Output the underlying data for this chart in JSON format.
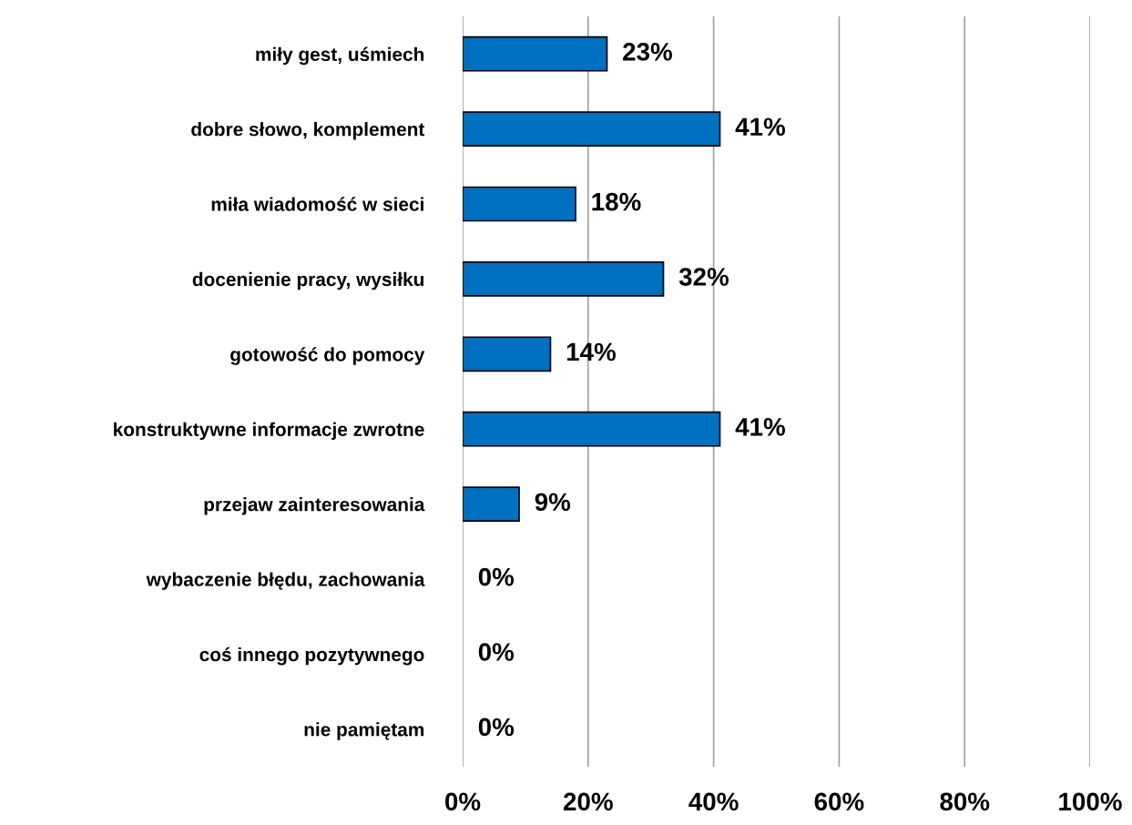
{
  "chart_data": {
    "type": "bar",
    "orientation": "horizontal",
    "categories": [
      "miły gest, uśmiech",
      "dobre słowo, komplement",
      "miła wiadomość w sieci",
      "docenienie pracy, wysiłku",
      "gotowość do pomocy",
      "konstruktywne informacje zwrotne",
      "przejaw zainteresowania",
      "wybaczenie błędu, zachowania",
      "coś innego pozytywnego",
      "nie pamiętam"
    ],
    "values": [
      23,
      41,
      18,
      32,
      14,
      41,
      9,
      0,
      0,
      0
    ],
    "value_labels": [
      "23%",
      "41%",
      "18%",
      "32%",
      "14%",
      "41%",
      "9%",
      "0%",
      "0%",
      "0%"
    ],
    "color": "#0070c0",
    "xlim": [
      0,
      100
    ],
    "xticks": [
      {
        "value": 0,
        "label": "0%"
      },
      {
        "value": 20,
        "label": "20%"
      },
      {
        "value": 40,
        "label": "40%"
      },
      {
        "value": 60,
        "label": "60%"
      },
      {
        "value": 80,
        "label": "80%"
      },
      {
        "value": 100,
        "label": "100%"
      }
    ],
    "grid": "x"
  }
}
